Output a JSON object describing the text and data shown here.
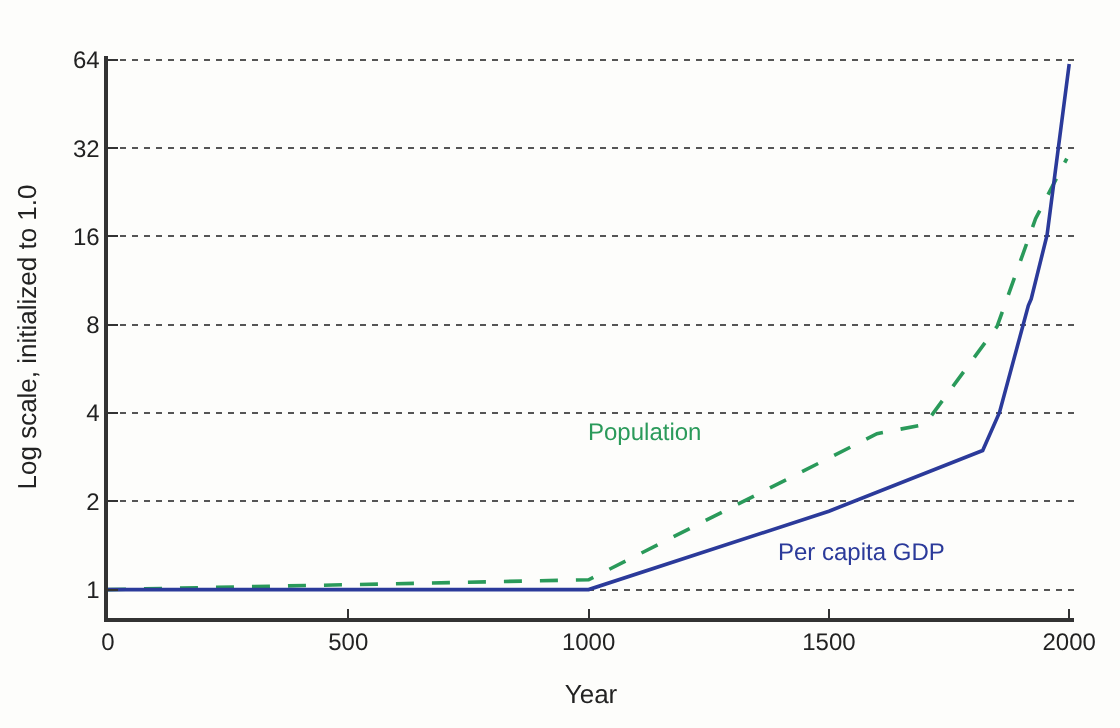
{
  "chart_data": {
    "type": "line",
    "xlabel": "Year",
    "ylabel": "Log scale, initialized to 1.0",
    "log": true,
    "grid": "y",
    "legend": false,
    "xlim": [
      0,
      2010
    ],
    "xticks": [
      0,
      500,
      1000,
      1500,
      2000
    ],
    "ylim": [
      0.8,
      66
    ],
    "yticks": [
      1,
      2,
      4,
      8,
      16,
      32,
      64
    ],
    "series": [
      {
        "name": "Population",
        "color": "#2a9a5a",
        "line_style": "dashed",
        "x": [
          0,
          1000,
          1600,
          1700,
          1850,
          1930,
          1995
        ],
        "values": [
          1.0,
          1.08,
          3.4,
          3.66,
          7.9,
          18.4,
          29.5
        ]
      },
      {
        "name": "Per capita GDP",
        "color": "#2b3a9a",
        "line_style": "solid",
        "x": [
          0,
          1000,
          1500,
          1820,
          1855,
          1915,
          1921,
          1954,
          2000
        ],
        "values": [
          1.0,
          1.0,
          1.85,
          2.98,
          4.02,
          9.3,
          9.8,
          16.2,
          62
        ]
      }
    ]
  }
}
